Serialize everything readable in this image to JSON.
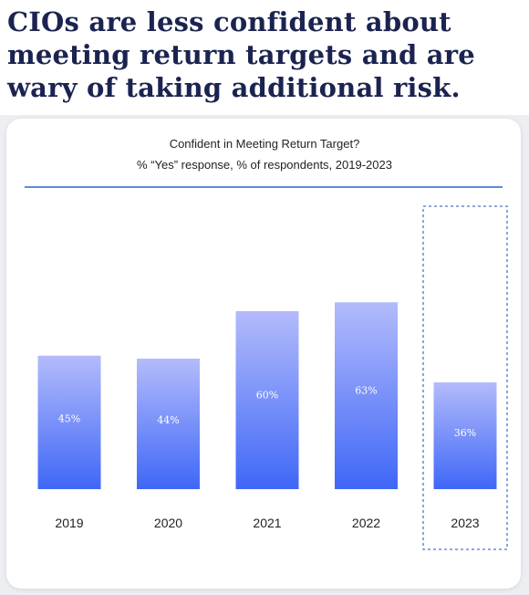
{
  "headline": "CIOs are less confident about meeting return targets and are wary of taking additional risk.",
  "chart_data": {
    "type": "bar",
    "title": "Confident in Meeting Return Target?",
    "subtitle": "% “Yes” response, % of respondents, 2019-2023",
    "categories": [
      "2019",
      "2020",
      "2021",
      "2022",
      "2023"
    ],
    "values": [
      45,
      44,
      60,
      63,
      36
    ],
    "value_labels": [
      "45%",
      "44%",
      "60%",
      "63%",
      "36%"
    ],
    "unit": "%",
    "highlighted_category": "2023",
    "ylim": [
      0,
      100
    ],
    "grid": false,
    "colors": {
      "bar_top": "#b3bbfb",
      "bar_bottom": "#3f67f7",
      "highlight_border": "#4a76c6",
      "rule": "#5b8ad8"
    }
  }
}
